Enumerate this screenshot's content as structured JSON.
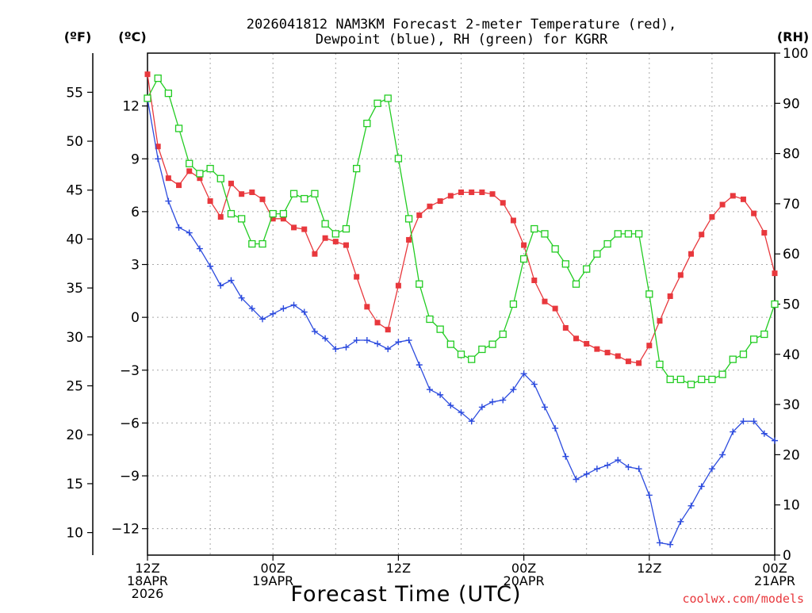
{
  "chart_data": {
    "type": "line",
    "title_line1": "2026041812 NAM3KM Forecast 2-meter Temperature (red),",
    "title_line2": "Dewpoint (blue), RH (green) for KGRR",
    "unit_labels": {
      "fahrenheit": "(ºF)",
      "celsius": "(ºC)",
      "rh": "(RH)"
    },
    "xlabel": "Forecast Time (UTC)",
    "credit": "coolwx.com/models",
    "x_range": [
      0,
      60
    ],
    "y_celsius_range": [
      -13.5,
      15
    ],
    "y_rh_range": [
      0,
      100
    ],
    "x_ticks": [
      {
        "x": 0,
        "lines": [
          "12Z",
          "18APR",
          "2026"
        ]
      },
      {
        "x": 12,
        "lines": [
          "00Z",
          "19APR"
        ]
      },
      {
        "x": 24,
        "lines": [
          "12Z"
        ]
      },
      {
        "x": 36,
        "lines": [
          "00Z",
          "20APR"
        ]
      },
      {
        "x": 48,
        "lines": [
          "12Z"
        ]
      },
      {
        "x": 60,
        "lines": [
          "00Z",
          "21APR"
        ]
      }
    ],
    "celsius_ticks": [
      {
        "v": -12,
        "label": "−12"
      },
      {
        "v": -9,
        "label": "−9"
      },
      {
        "v": -6,
        "label": "−6"
      },
      {
        "v": -3,
        "label": "−3"
      },
      {
        "v": 0,
        "label": "0"
      },
      {
        "v": 3,
        "label": "3"
      },
      {
        "v": 6,
        "label": "6"
      },
      {
        "v": 9,
        "label": "9"
      },
      {
        "v": 12,
        "label": "12"
      }
    ],
    "fahrenheit_ticks": [
      {
        "v": 10,
        "label": "10"
      },
      {
        "v": 15,
        "label": "15"
      },
      {
        "v": 20,
        "label": "20"
      },
      {
        "v": 25,
        "label": "25"
      },
      {
        "v": 30,
        "label": "30"
      },
      {
        "v": 35,
        "label": "35"
      },
      {
        "v": 40,
        "label": "40"
      },
      {
        "v": 45,
        "label": "45"
      },
      {
        "v": 50,
        "label": "50"
      },
      {
        "v": 55,
        "label": "55"
      }
    ],
    "rh_ticks": [
      {
        "v": 0,
        "label": "0"
      },
      {
        "v": 10,
        "label": "10"
      },
      {
        "v": 20,
        "label": "20"
      },
      {
        "v": 30,
        "label": "30"
      },
      {
        "v": 40,
        "label": "40"
      },
      {
        "v": 50,
        "label": "50"
      },
      {
        "v": 60,
        "label": "60"
      },
      {
        "v": 70,
        "label": "70"
      },
      {
        "v": 80,
        "label": "80"
      },
      {
        "v": 90,
        "label": "90"
      },
      {
        "v": 100,
        "label": "100"
      }
    ],
    "grid": true,
    "x": [
      0,
      1,
      2,
      3,
      4,
      5,
      6,
      7,
      8,
      9,
      10,
      11,
      12,
      13,
      14,
      15,
      16,
      17,
      18,
      19,
      20,
      21,
      22,
      23,
      24,
      25,
      26,
      27,
      28,
      29,
      30,
      31,
      32,
      33,
      34,
      35,
      36,
      37,
      38,
      39,
      40,
      41,
      42,
      43,
      44,
      45,
      46,
      47,
      48,
      49,
      50,
      51,
      52,
      53,
      54,
      55,
      56,
      57,
      58,
      59,
      60
    ],
    "series": [
      {
        "name": "Temperature",
        "unit": "C",
        "color": "#e8383d",
        "marker": "filled-square",
        "values": [
          13.8,
          9.7,
          7.9,
          7.5,
          8.3,
          7.9,
          6.6,
          5.7,
          7.6,
          7.0,
          7.1,
          6.7,
          5.6,
          5.6,
          5.1,
          5.0,
          3.6,
          4.5,
          4.3,
          4.1,
          2.3,
          0.6,
          -0.3,
          -0.7,
          1.8,
          4.4,
          5.8,
          6.3,
          6.6,
          6.9,
          7.1,
          7.1,
          7.1,
          7.0,
          6.5,
          5.5,
          4.1,
          2.1,
          0.9,
          0.5,
          -0.6,
          -1.2,
          -1.5,
          -1.8,
          -2.0,
          -2.2,
          -2.5,
          -2.6,
          -1.6,
          -0.2,
          1.2,
          2.4,
          3.6,
          4.7,
          5.7,
          6.4,
          6.9,
          6.7,
          5.9,
          4.8,
          2.5
        ]
      },
      {
        "name": "Dewpoint",
        "unit": "C",
        "color": "#2c4bde",
        "marker": "plus",
        "values": [
          12.4,
          9.0,
          6.6,
          5.1,
          4.8,
          3.9,
          2.9,
          1.8,
          2.1,
          1.1,
          0.5,
          -0.1,
          0.2,
          0.5,
          0.7,
          0.3,
          -0.8,
          -1.2,
          -1.8,
          -1.7,
          -1.3,
          -1.3,
          -1.5,
          -1.8,
          -1.4,
          -1.3,
          -2.7,
          -4.1,
          -4.4,
          -5.0,
          -5.4,
          -5.9,
          -5.1,
          -4.8,
          -4.7,
          -4.1,
          -3.2,
          -3.8,
          -5.1,
          -6.3,
          -7.9,
          -9.2,
          -8.9,
          -8.6,
          -8.4,
          -8.1,
          -8.5,
          -8.6,
          -10.1,
          -12.8,
          -12.9,
          -11.6,
          -10.7,
          -9.6,
          -8.6,
          -7.8,
          -6.5,
          -5.9,
          -5.9,
          -6.6,
          -7.0
        ]
      },
      {
        "name": "RH",
        "unit": "%",
        "color": "#22cc22",
        "marker": "hollow-square",
        "values": [
          91,
          95,
          92,
          85,
          78,
          76,
          77,
          75,
          68,
          67,
          62,
          62,
          68,
          68,
          72,
          71,
          72,
          66,
          64,
          65,
          77,
          86,
          90,
          91,
          79,
          67,
          54,
          47,
          45,
          42,
          40,
          39,
          41,
          42,
          44,
          50,
          59,
          65,
          64,
          61,
          58,
          54,
          57,
          60,
          62,
          64,
          64,
          64,
          52,
          38,
          35,
          35,
          34,
          35,
          35,
          36,
          39,
          40,
          43,
          44,
          50
        ]
      }
    ]
  }
}
